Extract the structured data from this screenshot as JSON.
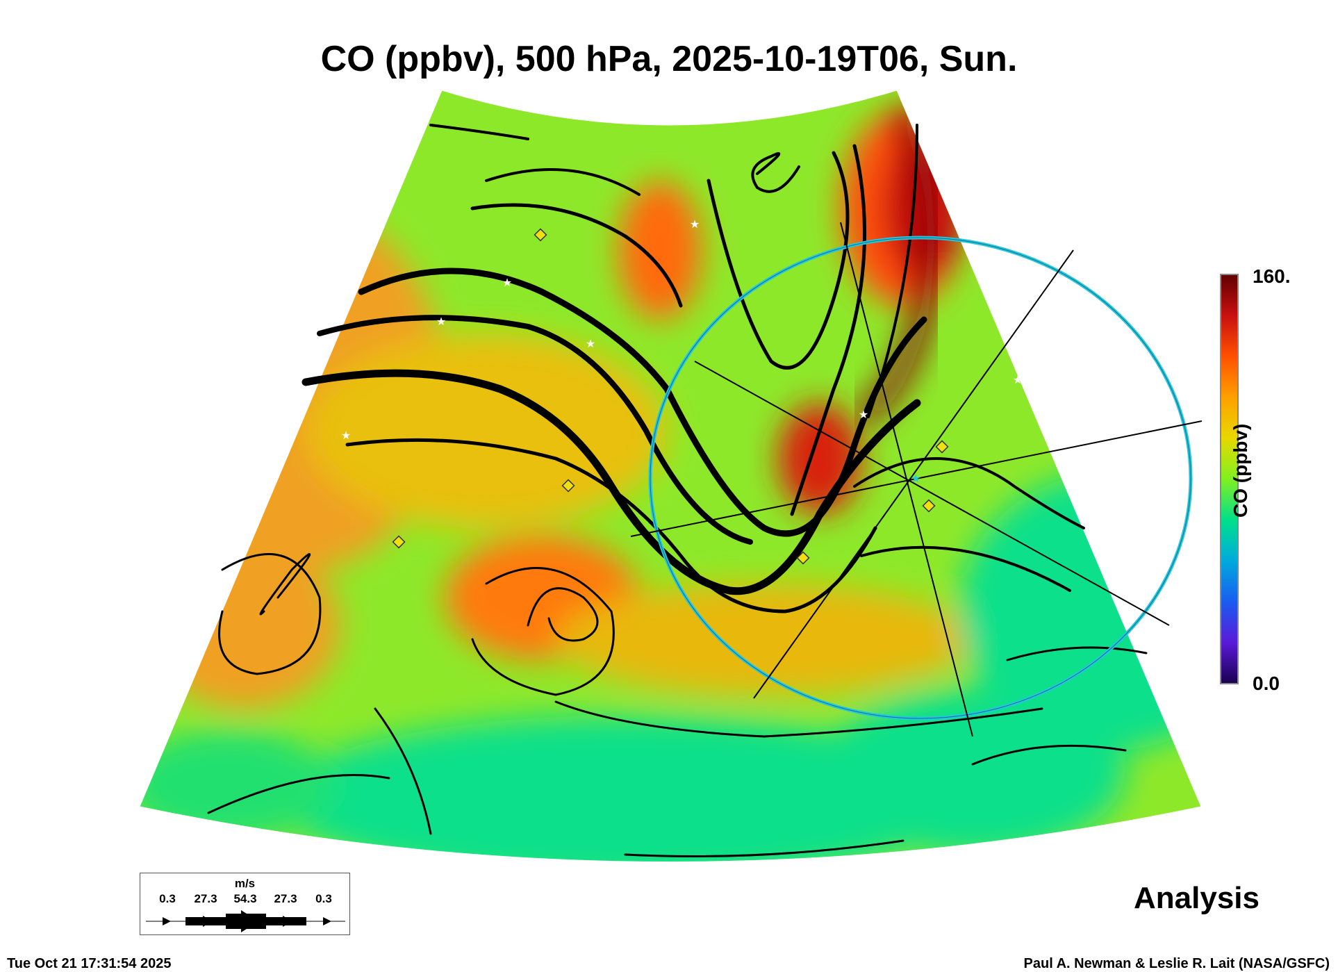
{
  "title": "CO (ppbv), 500 hPa, 2025-10-19T06, Sun.",
  "colorbar": {
    "max_label": "160.",
    "min_label": "0.0",
    "title": "CO (ppbv)",
    "colors": [
      "#1a0050",
      "#5a1ad8",
      "#1a5cf0",
      "#00aadd",
      "#00e08a",
      "#80f020",
      "#e8d800",
      "#ffa000",
      "#ff5000",
      "#c81010",
      "#600000"
    ]
  },
  "wind_legend": {
    "unit": "m/s",
    "values": [
      "0.3",
      "27.3",
      "54.3",
      "27.3",
      "0.3"
    ]
  },
  "label": "Analysis",
  "timestamp": "Tue Oct 21 17:31:54 2025",
  "credit": "Paul A. Newman & Leslie R. Lait (NASA/GSFC)",
  "overlay_color": "#20c8e0"
}
